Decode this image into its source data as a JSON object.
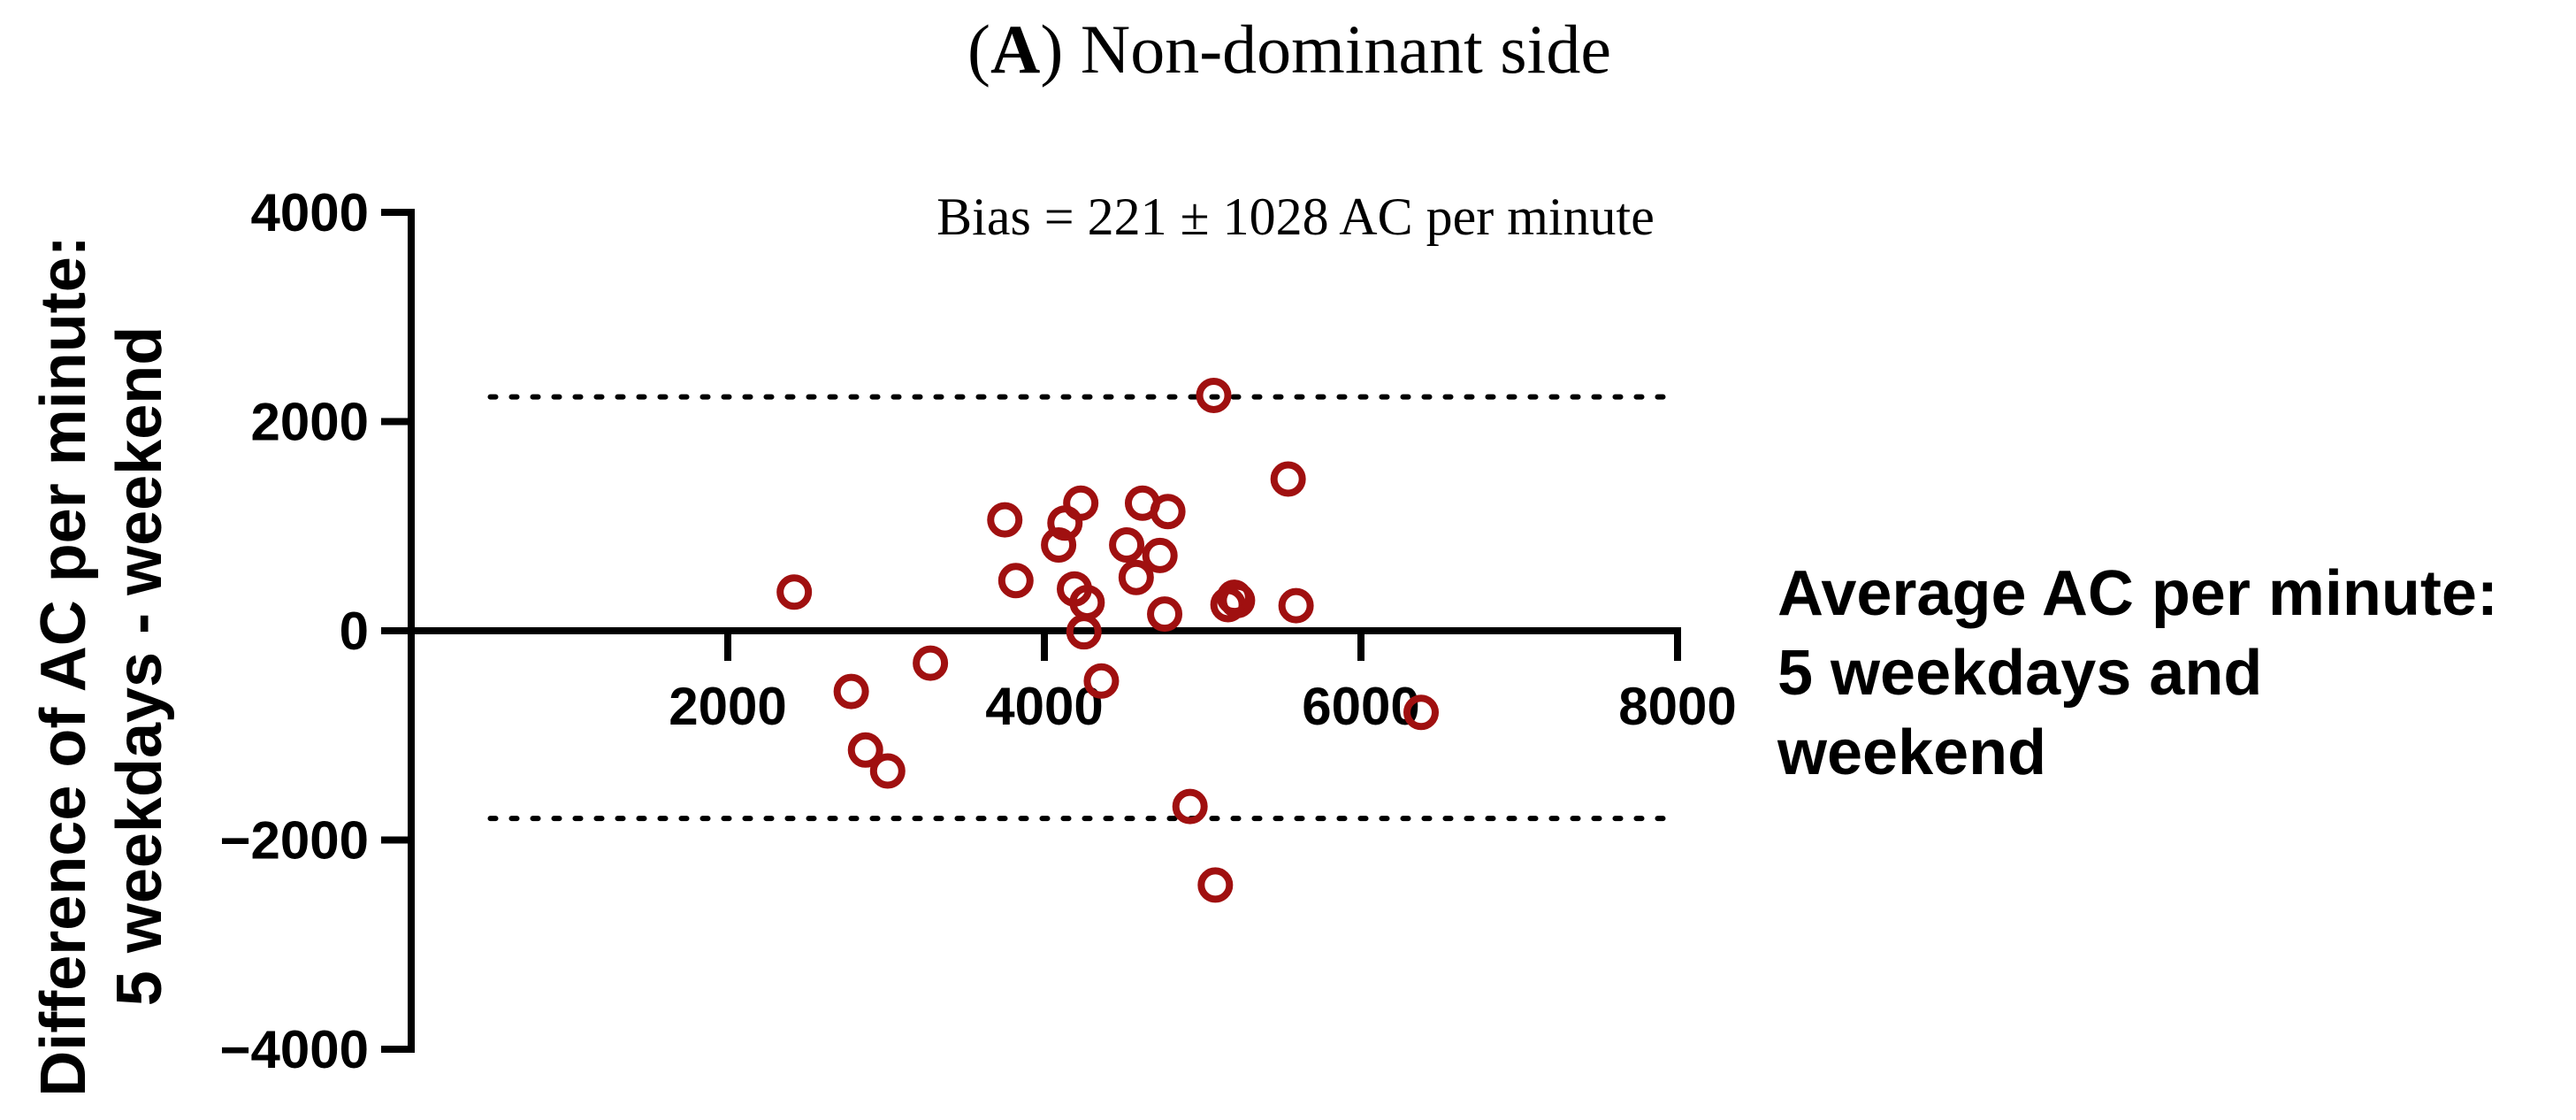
{
  "chart_data": {
    "type": "scatter",
    "title_letter": "A",
    "title_text": "Non-dominant side",
    "annotation": "Bias = 221 ± 1028 AC per minute",
    "xlabel_lines": [
      "Average AC per minute:",
      "5 weekdays and",
      "weekend"
    ],
    "ylabel_lines": [
      "Difference of AC per minute:",
      "5 weekdays - weekend"
    ],
    "xlim": [
      0,
      8000
    ],
    "ylim": [
      -4000,
      4000
    ],
    "x_ticks": [
      2000,
      4000,
      6000,
      8000
    ],
    "x_tick_labels": [
      "2000",
      "4000",
      "6000",
      "8000"
    ],
    "y_ticks": [
      4000,
      2000,
      0,
      -2000,
      -4000
    ],
    "y_tick_labels": [
      "4000",
      "2000",
      "0",
      "−2000",
      "−4000"
    ],
    "limits_of_agreement": [
      2236,
      -1794
    ],
    "loa_x_range": [
      500,
      8000
    ],
    "grid": false,
    "legend": "none",
    "point_color": "#a01010",
    "points": [
      {
        "x": 2420,
        "y": 370
      },
      {
        "x": 2780,
        "y": -580
      },
      {
        "x": 2870,
        "y": -1140
      },
      {
        "x": 3010,
        "y": -1340
      },
      {
        "x": 3280,
        "y": -310
      },
      {
        "x": 3750,
        "y": 1060
      },
      {
        "x": 3820,
        "y": 480
      },
      {
        "x": 4090,
        "y": 820
      },
      {
        "x": 4130,
        "y": 1030
      },
      {
        "x": 4190,
        "y": 400
      },
      {
        "x": 4230,
        "y": 1220
      },
      {
        "x": 4250,
        "y": -10
      },
      {
        "x": 4270,
        "y": 270
      },
      {
        "x": 4360,
        "y": -480
      },
      {
        "x": 4520,
        "y": 820
      },
      {
        "x": 4580,
        "y": 510
      },
      {
        "x": 4620,
        "y": 1220
      },
      {
        "x": 4730,
        "y": 720
      },
      {
        "x": 4760,
        "y": 160
      },
      {
        "x": 4780,
        "y": 1140
      },
      {
        "x": 4920,
        "y": -1680
      },
      {
        "x": 5070,
        "y": 2250
      },
      {
        "x": 5080,
        "y": -2430
      },
      {
        "x": 5160,
        "y": 250
      },
      {
        "x": 5200,
        "y": 320
      },
      {
        "x": 5220,
        "y": 290
      },
      {
        "x": 5540,
        "y": 1450
      },
      {
        "x": 5590,
        "y": 240
      },
      {
        "x": 6380,
        "y": -780
      }
    ]
  }
}
